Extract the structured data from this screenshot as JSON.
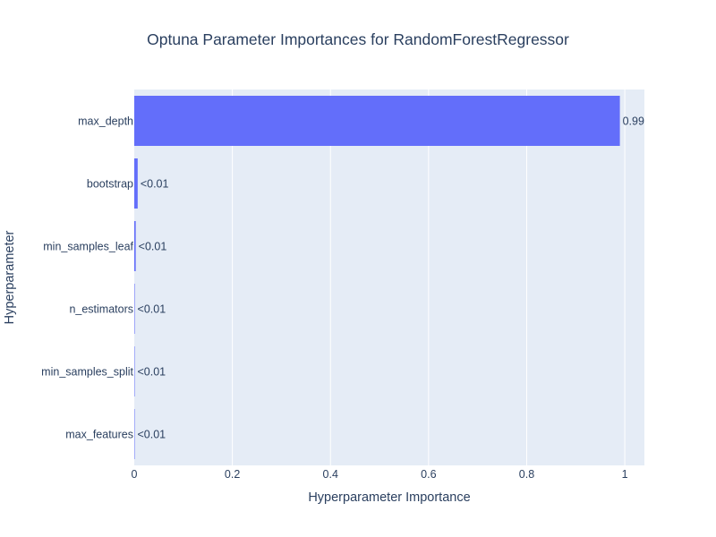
{
  "chart_data": {
    "type": "bar",
    "orientation": "horizontal",
    "title": "Optuna Parameter Importances for RandomForestRegressor",
    "xlabel": "Hyperparameter Importance",
    "ylabel": "Hyperparameter",
    "xlim": [
      0,
      1.04
    ],
    "x_ticks": [
      0,
      0.2,
      0.4,
      0.6,
      0.8,
      1
    ],
    "x_tick_labels": [
      "0",
      "0.2",
      "0.4",
      "0.6",
      "0.8",
      "1"
    ],
    "grid": true,
    "categories": [
      "max_depth",
      "bootstrap",
      "min_samples_leaf",
      "n_estimators",
      "min_samples_split",
      "max_features"
    ],
    "values": [
      0.99,
      0.007,
      0.003,
      0.001,
      0.0005,
      0.0002
    ],
    "data_labels": [
      "0.99",
      "<0.01",
      "<0.01",
      "<0.01",
      "<0.01",
      "<0.01"
    ],
    "colors": {
      "bar": "#636efa",
      "plot_background": "#e5ecf6",
      "grid": "#ffffff",
      "text": "#2a3f5f"
    }
  }
}
